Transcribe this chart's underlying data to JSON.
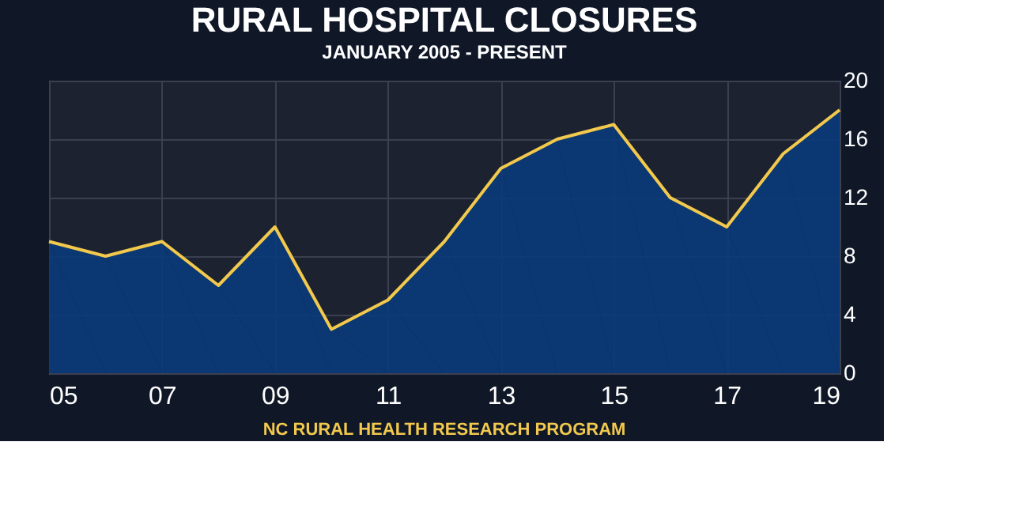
{
  "chart_data": {
    "type": "area",
    "title": "RURAL HOSPITAL CLOSURES",
    "subtitle": "JANUARY 2005 - PRESENT",
    "annotations": [
      "NC RURAL HEALTH RESEARCH PROGRAM"
    ],
    "x": [
      2005,
      2006,
      2007,
      2008,
      2009,
      2010,
      2011,
      2012,
      2013,
      2014,
      2015,
      2016,
      2017,
      2018,
      2019
    ],
    "series": [
      {
        "color": "#0a3a7a",
        "values": [
          9,
          8,
          9,
          6,
          10,
          3,
          5,
          9,
          14,
          16,
          17,
          12,
          10,
          15,
          18
        ]
      },
      {
        "type": "line",
        "color": "#f2c94c",
        "values": [
          9,
          8,
          9,
          6,
          10,
          3,
          5,
          9,
          14,
          16,
          17,
          12,
          10,
          15,
          18
        ]
      }
    ],
    "xlim": [
      2005,
      2019
    ],
    "xticks": [
      {
        "value": 2005,
        "label": "05"
      },
      {
        "value": 2007,
        "label": "07"
      },
      {
        "value": 2009,
        "label": "09"
      },
      {
        "value": 2011,
        "label": "11"
      },
      {
        "value": 2013,
        "label": "13"
      },
      {
        "value": 2015,
        "label": "15"
      },
      {
        "value": 2017,
        "label": "17"
      },
      {
        "value": 2019,
        "label": "19"
      }
    ],
    "ylim": [
      0,
      20
    ],
    "yticks": [
      0,
      4,
      8,
      12,
      16,
      20
    ],
    "grid": true
  }
}
